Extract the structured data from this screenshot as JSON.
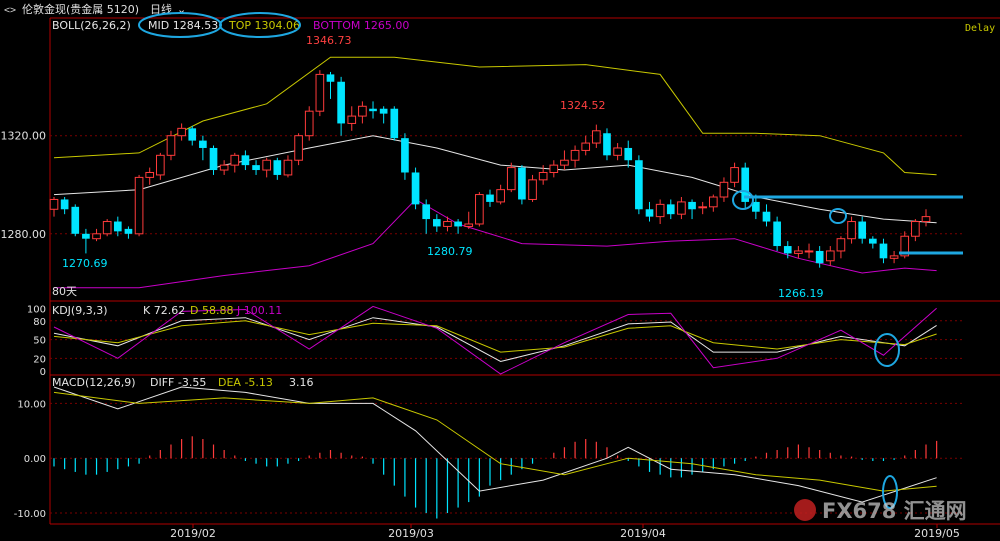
{
  "header": {
    "symbol_title": "伦敦金现(贵金属 5120)",
    "period": "日线",
    "delay_label": "Delay"
  },
  "indicators": {
    "boll": {
      "label": "BOLL(26,26,2)",
      "mid": "MID 1284.53",
      "top": "TOP 1304.06",
      "bottom": "BOTTOM 1265.00"
    },
    "kdj": {
      "label": "KDJ(9,3,3)",
      "k": "K 72.62",
      "d": "D 58.88",
      "j": "J 100.11"
    },
    "macd": {
      "label": "MACD(12,26,9)",
      "diff": "DIFF -3.55",
      "dea": "DEA -5.13",
      "macd": "3.16"
    }
  },
  "annotations": {
    "high1": "1346.73",
    "high2": "1324.52",
    "low1": "1270.69",
    "low2": "1280.79",
    "low3": "1266.19",
    "days": "80天"
  },
  "watermark": "FX678 汇通网",
  "colors": {
    "background": "#000000",
    "up": "#ff3b3b",
    "down": "#00e5ff",
    "mid": "#e6e6e6",
    "top": "#c8c800",
    "bottom": "#c800c8",
    "grid": "#7a0000",
    "axis": "#b00000",
    "annotation": "#1ea7e1"
  },
  "chart_data": [
    {
      "type": "candlestick",
      "title": "伦敦金现 日线",
      "x_labels": [
        "2019/02",
        "2019/03",
        "2019/04",
        "2019/05"
      ],
      "y_ticks": [
        1280.0,
        1320.0
      ],
      "ylim": [
        1253,
        1368
      ],
      "candles": [
        [
          1290,
          1294,
          1287,
          1295
        ],
        [
          1294,
          1290,
          1288,
          1295
        ],
        [
          1291,
          1280,
          1279,
          1292
        ],
        [
          1280,
          1278,
          1272,
          1282
        ],
        [
          1278,
          1280,
          1277,
          1282
        ],
        [
          1280,
          1285,
          1279,
          1286
        ],
        [
          1285,
          1281,
          1279,
          1287
        ],
        [
          1282,
          1280,
          1278,
          1283
        ],
        [
          1280,
          1303,
          1279,
          1304
        ],
        [
          1303,
          1305,
          1300,
          1307
        ],
        [
          1304,
          1312,
          1302,
          1313
        ],
        [
          1312,
          1320,
          1310,
          1322
        ],
        [
          1320,
          1323,
          1318,
          1325
        ],
        [
          1323,
          1318,
          1316,
          1324
        ],
        [
          1318,
          1315,
          1310,
          1320
        ],
        [
          1315,
          1306,
          1304,
          1316
        ],
        [
          1306,
          1308,
          1304,
          1310
        ],
        [
          1308,
          1312,
          1305,
          1313
        ],
        [
          1312,
          1308,
          1306,
          1314
        ],
        [
          1308,
          1306,
          1304,
          1310
        ],
        [
          1306,
          1310,
          1303,
          1311
        ],
        [
          1310,
          1304,
          1302,
          1311
        ],
        [
          1304,
          1310,
          1303,
          1312
        ],
        [
          1310,
          1320,
          1308,
          1321
        ],
        [
          1320,
          1330,
          1318,
          1332
        ],
        [
          1330,
          1345,
          1328,
          1346.73
        ],
        [
          1345,
          1342,
          1335,
          1346
        ],
        [
          1342,
          1325,
          1320,
          1344
        ],
        [
          1325,
          1328,
          1322,
          1332
        ],
        [
          1328,
          1332,
          1325,
          1334
        ],
        [
          1331,
          1330,
          1327,
          1334
        ],
        [
          1331,
          1329,
          1325,
          1332
        ],
        [
          1331,
          1319,
          1318,
          1332
        ],
        [
          1319,
          1305,
          1302,
          1321
        ],
        [
          1305,
          1292,
          1290,
          1307
        ],
        [
          1292,
          1286,
          1280,
          1294
        ],
        [
          1286,
          1283,
          1280.79,
          1288
        ],
        [
          1283,
          1285,
          1281,
          1287
        ],
        [
          1285,
          1283,
          1280,
          1286
        ],
        [
          1283,
          1284,
          1282,
          1289
        ],
        [
          1284,
          1296,
          1283,
          1297
        ],
        [
          1296,
          1293,
          1291,
          1298
        ],
        [
          1293,
          1298,
          1292,
          1300
        ],
        [
          1298,
          1307,
          1297,
          1309
        ],
        [
          1307,
          1294,
          1292,
          1308
        ],
        [
          1294,
          1302,
          1293,
          1304
        ],
        [
          1302,
          1305,
          1300,
          1308
        ],
        [
          1305,
          1308,
          1303,
          1310
        ],
        [
          1308,
          1310,
          1306,
          1314
        ],
        [
          1310,
          1314,
          1307,
          1316
        ],
        [
          1314,
          1317,
          1312,
          1320
        ],
        [
          1317,
          1322,
          1315,
          1324.52
        ],
        [
          1321,
          1312,
          1310,
          1323
        ],
        [
          1312,
          1315,
          1310,
          1317
        ],
        [
          1315,
          1310,
          1307,
          1318
        ],
        [
          1310,
          1290,
          1288,
          1312
        ],
        [
          1290,
          1287,
          1285,
          1293
        ],
        [
          1287,
          1292,
          1284,
          1294
        ],
        [
          1292,
          1288,
          1286,
          1294
        ],
        [
          1288,
          1293,
          1286,
          1295
        ],
        [
          1293,
          1290,
          1286,
          1294
        ],
        [
          1291,
          1291,
          1288,
          1293
        ],
        [
          1291,
          1295,
          1289,
          1296
        ],
        [
          1295,
          1301,
          1293,
          1303
        ],
        [
          1301,
          1307,
          1299,
          1309
        ],
        [
          1307,
          1293,
          1290,
          1309
        ],
        [
          1293,
          1289,
          1286,
          1296
        ],
        [
          1289,
          1285,
          1283,
          1292
        ],
        [
          1285,
          1275,
          1273,
          1287
        ],
        [
          1275,
          1272,
          1270,
          1277
        ],
        [
          1272,
          1273,
          1270,
          1275
        ],
        [
          1273,
          1273,
          1270,
          1276
        ],
        [
          1273,
          1268,
          1266.19,
          1275
        ],
        [
          1269,
          1273,
          1267,
          1275
        ],
        [
          1273,
          1278,
          1270,
          1279
        ],
        [
          1278,
          1285,
          1276,
          1287
        ],
        [
          1285,
          1278,
          1276,
          1287
        ],
        [
          1278,
          1276,
          1274,
          1279
        ],
        [
          1276,
          1270,
          1268,
          1278
        ],
        [
          1270,
          1271,
          1268,
          1273
        ],
        [
          1271,
          1279,
          1270,
          1281
        ],
        [
          1279,
          1285,
          1277,
          1286
        ],
        [
          1285,
          1287,
          1283,
          1290
        ]
      ],
      "mid": [
        [
          0,
          1296
        ],
        [
          8,
          1298
        ],
        [
          16,
          1308
        ],
        [
          24,
          1315
        ],
        [
          30,
          1320
        ],
        [
          36,
          1315
        ],
        [
          42,
          1308
        ],
        [
          48,
          1306
        ],
        [
          54,
          1308
        ],
        [
          60,
          1303
        ],
        [
          66,
          1295
        ],
        [
          72,
          1290
        ],
        [
          78,
          1286
        ],
        [
          83,
          1284.53
        ]
      ],
      "top": [
        [
          0,
          1311
        ],
        [
          8,
          1313
        ],
        [
          14,
          1326
        ],
        [
          20,
          1333
        ],
        [
          26,
          1352
        ],
        [
          32,
          1352
        ],
        [
          40,
          1348
        ],
        [
          50,
          1349
        ],
        [
          57,
          1345
        ],
        [
          61,
          1321
        ],
        [
          66,
          1321
        ],
        [
          72,
          1320
        ],
        [
          78,
          1313
        ],
        [
          80,
          1305
        ],
        [
          83,
          1304.06
        ]
      ],
      "bottom": [
        [
          0,
          1258
        ],
        [
          8,
          1258
        ],
        [
          16,
          1263
        ],
        [
          24,
          1267
        ],
        [
          30,
          1276
        ],
        [
          34,
          1294
        ],
        [
          38,
          1284
        ],
        [
          44,
          1276
        ],
        [
          52,
          1275
        ],
        [
          58,
          1277
        ],
        [
          64,
          1278
        ],
        [
          70,
          1270
        ],
        [
          76,
          1264
        ],
        [
          80,
          1266
        ],
        [
          83,
          1265.0
        ]
      ]
    },
    {
      "type": "line",
      "title": "KDJ(9,3,3)",
      "y_ticks": [
        0,
        20,
        50,
        80,
        100
      ],
      "ylim": [
        -5,
        110
      ],
      "series": [
        {
          "name": "K",
          "values": [
            [
              0,
              60
            ],
            [
              6,
              40
            ],
            [
              12,
              80
            ],
            [
              18,
              85
            ],
            [
              24,
              50
            ],
            [
              30,
              85
            ],
            [
              36,
              70
            ],
            [
              42,
              15
            ],
            [
              48,
              40
            ],
            [
              54,
              75
            ],
            [
              58,
              78
            ],
            [
              62,
              30
            ],
            [
              68,
              30
            ],
            [
              74,
              55
            ],
            [
              80,
              40
            ],
            [
              83,
              72.62
            ]
          ]
        },
        {
          "name": "D",
          "values": [
            [
              0,
              55
            ],
            [
              6,
              45
            ],
            [
              12,
              72
            ],
            [
              18,
              80
            ],
            [
              24,
              58
            ],
            [
              30,
              76
            ],
            [
              36,
              72
            ],
            [
              42,
              30
            ],
            [
              48,
              38
            ],
            [
              54,
              68
            ],
            [
              58,
              72
            ],
            [
              62,
              45
            ],
            [
              68,
              35
            ],
            [
              74,
              50
            ],
            [
              80,
              42
            ],
            [
              83,
              58.88
            ]
          ]
        },
        {
          "name": "J",
          "values": [
            [
              0,
              70
            ],
            [
              6,
              20
            ],
            [
              12,
              95
            ],
            [
              18,
              98
            ],
            [
              24,
              35
            ],
            [
              30,
              103
            ],
            [
              36,
              68
            ],
            [
              42,
              -5
            ],
            [
              48,
              45
            ],
            [
              54,
              90
            ],
            [
              58,
              92
            ],
            [
              62,
              5
            ],
            [
              68,
              20
            ],
            [
              74,
              65
            ],
            [
              78,
              25
            ],
            [
              83,
              100.11
            ]
          ]
        }
      ]
    },
    {
      "type": "bar",
      "title": "MACD(12,26,9)",
      "y_ticks": [
        -10.0,
        0.0,
        10.0
      ],
      "ylim": [
        -12,
        15
      ],
      "series": [
        {
          "name": "DIFF",
          "values": [
            [
              0,
              13
            ],
            [
              6,
              9
            ],
            [
              12,
              13
            ],
            [
              18,
              12
            ],
            [
              24,
              10
            ],
            [
              30,
              10
            ],
            [
              34,
              5
            ],
            [
              40,
              -6
            ],
            [
              46,
              -4
            ],
            [
              52,
              0
            ],
            [
              54,
              2
            ],
            [
              58,
              -2
            ],
            [
              64,
              -3
            ],
            [
              70,
              -5
            ],
            [
              76,
              -8
            ],
            [
              83,
              -3.55
            ]
          ]
        },
        {
          "name": "DEA",
          "values": [
            [
              0,
              12
            ],
            [
              8,
              10
            ],
            [
              16,
              11
            ],
            [
              24,
              10
            ],
            [
              30,
              11
            ],
            [
              36,
              7
            ],
            [
              42,
              -1
            ],
            [
              48,
              -3
            ],
            [
              54,
              0
            ],
            [
              60,
              -1
            ],
            [
              66,
              -3
            ],
            [
              72,
              -4
            ],
            [
              78,
              -6
            ],
            [
              83,
              -5.13
            ]
          ]
        }
      ],
      "histogram": [
        -1.5,
        -2,
        -2.5,
        -3,
        -3,
        -2.5,
        -2,
        -1.5,
        -1,
        0.5,
        1.5,
        2.5,
        3.5,
        4,
        3.5,
        2.5,
        1.5,
        0.5,
        -0.5,
        -1,
        -1.5,
        -1.5,
        -1,
        -0.5,
        0.5,
        1,
        1.5,
        1,
        0.5,
        0.3,
        -1,
        -3,
        -5,
        -7,
        -9,
        -10,
        -11,
        -10,
        -9,
        -8,
        -7,
        -5,
        -4,
        -3,
        -2,
        -1,
        0,
        1,
        2,
        3,
        3.5,
        3,
        2,
        0.5,
        -0.5,
        -1.5,
        -2.5,
        -3,
        -3.5,
        -3.5,
        -3,
        -2.5,
        -2,
        -1.5,
        -1,
        -0.5,
        0.3,
        1,
        1.5,
        2,
        2.5,
        2,
        1.5,
        1,
        0.5,
        0.3,
        -0.3,
        -0.5,
        -0.5,
        -0.3,
        0.5,
        1.5,
        2.5,
        3.16
      ]
    }
  ]
}
